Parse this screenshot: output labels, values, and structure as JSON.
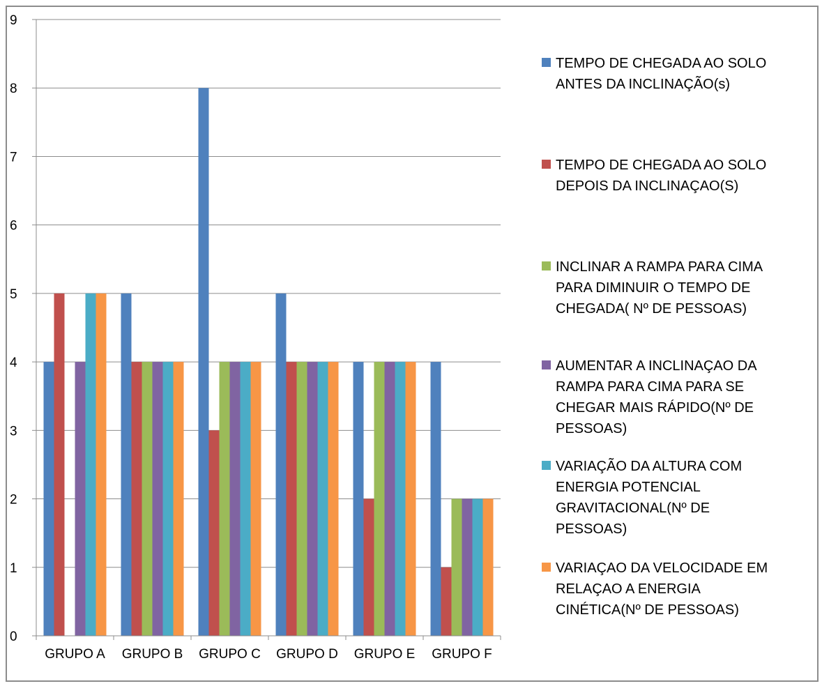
{
  "chart_data": {
    "type": "bar",
    "categories": [
      "GRUPO A",
      "GRUPO B",
      "GRUPO C",
      "GRUPO D",
      "GRUPO E",
      "GRUPO F"
    ],
    "ylim": [
      0,
      9
    ],
    "yticks": [
      0,
      1,
      2,
      3,
      4,
      5,
      6,
      7,
      8,
      9
    ],
    "grid": true,
    "legend_position": "right",
    "series": [
      {
        "name": "TEMPO DE CHEGADA AO SOLO ANTES DA INCLINAÇÃO(s)",
        "legend_lines": [
          "TEMPO DE CHEGADA AO SOLO",
          "ANTES DA INCLINAÇÃO(s)"
        ],
        "color": "#4F81BD",
        "values": [
          4,
          5,
          8,
          5,
          4,
          4
        ]
      },
      {
        "name": "TEMPO DE CHEGADA AO SOLO DEPOIS DA INCLINAÇAO(S)",
        "legend_lines": [
          "TEMPO DE CHEGADA AO SOLO",
          "DEPOIS DA INCLINAÇAO(S)"
        ],
        "color": "#C0504D",
        "values": [
          5,
          4,
          3,
          4,
          2,
          1
        ]
      },
      {
        "name": "INCLINAR  A RAMPA PARA CIMA PARA DIMINUIR O TEMPO DE CHEGADA( Nº DE PESSOAS)",
        "legend_lines": [
          "INCLINAR  A RAMPA PARA CIMA",
          "PARA DIMINUIR O TEMPO DE",
          "CHEGADA( Nº DE PESSOAS)"
        ],
        "color": "#9BBB59",
        "values": [
          0,
          4,
          4,
          4,
          4,
          2
        ]
      },
      {
        "name": "AUMENTAR A INCLINAÇAO DA RAMPA PARA CIMA PARA SE CHEGAR MAIS RÁPIDO(Nº DE PESSOAS)",
        "legend_lines": [
          "AUMENTAR A INCLINAÇAO DA",
          "RAMPA PARA CIMA PARA SE",
          "CHEGAR MAIS RÁPIDO(Nº DE",
          "PESSOAS)"
        ],
        "color": "#8064A2",
        "values": [
          4,
          4,
          4,
          4,
          4,
          2
        ]
      },
      {
        "name": "VARIAÇÃO DA ALTURA COM ENERGIA POTENCIAL GRAVITACIONAL(Nº DE PESSOAS)",
        "legend_lines": [
          "VARIAÇÃO DA ALTURA COM",
          "ENERGIA POTENCIAL",
          "GRAVITACIONAL(Nº DE",
          "PESSOAS)"
        ],
        "color": "#4BACC6",
        "values": [
          5,
          4,
          4,
          4,
          4,
          2
        ]
      },
      {
        "name": "VARIAÇAO DA VELOCIDADE EM RELAÇAO A ENERGIA CINÉTICA(Nº DE PESSOAS)",
        "legend_lines": [
          "VARIAÇAO DA VELOCIDADE EM",
          "RELAÇAO A ENERGIA",
          "CINÉTICA(Nº DE PESSOAS)"
        ],
        "color": "#F79646",
        "values": [
          5,
          4,
          4,
          4,
          4,
          2
        ]
      }
    ]
  }
}
